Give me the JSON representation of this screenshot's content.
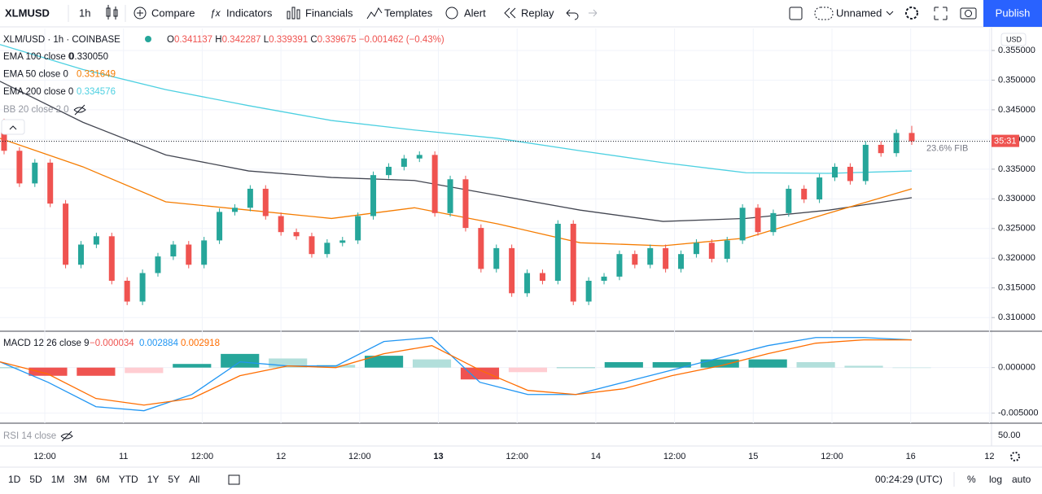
{
  "toolbar": {
    "symbol": "XLMUSD",
    "interval": "1h",
    "buttons": [
      "Compare",
      "Indicators",
      "Financials",
      "Templates",
      "Alert",
      "Replay"
    ],
    "layout_name": "Unnamed",
    "publish": "Publish"
  },
  "legend": {
    "instrument": "XLM/USD · 1h · COINBASE",
    "ohlc": [
      [
        "O",
        "0.341137"
      ],
      [
        "H",
        "0.342287"
      ],
      [
        "L",
        "0.339391"
      ],
      [
        "C",
        "0.339675"
      ]
    ],
    "change": "−0.001462 (−0.43%)",
    "indicator_values": [
      "0.330050",
      "0.331649",
      "0.334576"
    ],
    "bb": "BB 20 close 2 0",
    "rsi": "RSI 14 close",
    "rsi_tick": "50.00",
    "currency": "USD"
  },
  "chart_data": [
    {
      "type": "candlestick",
      "up_color": "#26a69a",
      "down_color": "#ef5350",
      "open": [
        0.3429,
        0.3381,
        0.3326,
        0.3361,
        0.3292,
        0.3189,
        0.3223,
        0.3237,
        0.3162,
        0.3127,
        0.3175,
        0.3203,
        0.3223,
        0.3189,
        0.323,
        0.3278,
        0.3285,
        0.3317,
        0.3271,
        0.3244,
        0.3237,
        0.3207,
        0.3226,
        0.323,
        0.3271,
        0.334,
        0.3354,
        0.3368,
        0.3374,
        0.3276,
        0.3333,
        0.3251,
        0.3182,
        0.3217,
        0.3141,
        0.3175,
        0.3162,
        0.3258,
        0.3127,
        0.3162,
        0.3169,
        0.3207,
        0.3189,
        0.3217,
        0.3182,
        0.3207,
        0.3226,
        0.3199,
        0.323,
        0.3285,
        0.3244,
        0.3276,
        0.3317,
        0.3299,
        0.3336,
        0.3354,
        0.333,
        0.3391,
        0.3377,
        0.3411
      ],
      "high": [
        0.3435,
        0.3387,
        0.3367,
        0.3367,
        0.3298,
        0.3229,
        0.3243,
        0.3243,
        0.3168,
        0.3181,
        0.3209,
        0.3229,
        0.3229,
        0.3236,
        0.3284,
        0.3291,
        0.3323,
        0.3323,
        0.3277,
        0.325,
        0.3243,
        0.3232,
        0.3236,
        0.3277,
        0.3346,
        0.336,
        0.3374,
        0.338,
        0.338,
        0.3339,
        0.3339,
        0.3257,
        0.3223,
        0.3223,
        0.3181,
        0.3181,
        0.3264,
        0.3264,
        0.3168,
        0.3175,
        0.3213,
        0.3213,
        0.3223,
        0.3223,
        0.3213,
        0.3232,
        0.3232,
        0.3236,
        0.3291,
        0.3291,
        0.3282,
        0.3323,
        0.3323,
        0.3342,
        0.336,
        0.336,
        0.3397,
        0.3397,
        0.3417,
        0.3423
      ],
      "low": [
        0.3375,
        0.332,
        0.332,
        0.3286,
        0.3183,
        0.3183,
        0.3217,
        0.3156,
        0.3121,
        0.3121,
        0.3169,
        0.3197,
        0.3183,
        0.3183,
        0.3224,
        0.3272,
        0.3279,
        0.3265,
        0.3238,
        0.3231,
        0.3201,
        0.3201,
        0.322,
        0.3224,
        0.3265,
        0.3334,
        0.3348,
        0.3362,
        0.327,
        0.327,
        0.3245,
        0.3176,
        0.3176,
        0.3135,
        0.3135,
        0.3156,
        0.3156,
        0.3121,
        0.3121,
        0.3156,
        0.3163,
        0.3183,
        0.3183,
        0.3176,
        0.3176,
        0.3201,
        0.3193,
        0.3193,
        0.3224,
        0.3238,
        0.3238,
        0.327,
        0.3293,
        0.3293,
        0.333,
        0.3324,
        0.3324,
        0.3371,
        0.3371,
        0.3391
      ],
      "close": [
        0.3381,
        0.3326,
        0.3361,
        0.3292,
        0.3189,
        0.3223,
        0.3237,
        0.3162,
        0.3127,
        0.3175,
        0.3203,
        0.3223,
        0.3189,
        0.323,
        0.3278,
        0.3285,
        0.3317,
        0.3271,
        0.3244,
        0.3237,
        0.3207,
        0.3226,
        0.323,
        0.3271,
        0.334,
        0.3354,
        0.3368,
        0.3374,
        0.3276,
        0.3333,
        0.3251,
        0.3182,
        0.3217,
        0.3141,
        0.3175,
        0.3162,
        0.3258,
        0.3127,
        0.3162,
        0.3169,
        0.3207,
        0.3189,
        0.3217,
        0.3182,
        0.3207,
        0.3226,
        0.3199,
        0.323,
        0.3285,
        0.3244,
        0.3276,
        0.3317,
        0.3299,
        0.3336,
        0.3354,
        0.333,
        0.3391,
        0.3377,
        0.3411,
        0.3397
      ],
      "series": [
        {
          "name": "EMA 100 close 0",
          "color": "#434651",
          "values": [
            0.3498,
            0.3429,
            0.3374,
            0.3347,
            0.3336,
            0.3331,
            0.3306,
            0.3281,
            0.3262,
            0.3267,
            0.3281,
            0.3302
          ]
        },
        {
          "name": "EMA 50 close 0",
          "color": "#f57c00",
          "values": [
            0.3402,
            0.3354,
            0.3295,
            0.3281,
            0.3267,
            0.3285,
            0.3258,
            0.3226,
            0.3221,
            0.3234,
            0.3276,
            0.3317
          ]
        },
        {
          "name": "EMA 200 close 0",
          "color": "#4dd0e1",
          "values": [
            0.356,
            0.3518,
            0.3484,
            0.3457,
            0.3432,
            0.3416,
            0.3402,
            0.3381,
            0.3361,
            0.3344,
            0.3343,
            0.3347
          ]
        }
      ],
      "ylim": [
        0.3077,
        0.3587
      ],
      "yticks": [
        {
          "value": 0.31,
          "label": "0.310000"
        },
        {
          "value": 0.315,
          "label": "0.315000"
        },
        {
          "value": 0.32,
          "label": "0.320000"
        },
        {
          "value": 0.325,
          "label": "0.325000"
        },
        {
          "value": 0.33,
          "label": "0.330000"
        },
        {
          "value": 0.335,
          "label": "0.335000"
        },
        {
          "value": 0.34,
          "label": "0.340000"
        },
        {
          "value": 0.345,
          "label": "0.345000"
        },
        {
          "value": 0.35,
          "label": "0.350000"
        },
        {
          "value": 0.355,
          "label": "0.355000"
        }
      ],
      "fib_label": "23.6% FIB",
      "countdown": "35:31",
      "x_labels": [
        "12:00",
        "11",
        "12:00",
        "12",
        "12:00",
        "13",
        "12:00",
        "14",
        "12:00",
        "15",
        "12:00",
        "16",
        "12"
      ]
    },
    {
      "type": "macd",
      "title": "MACD 12 26 close 9",
      "value_labels": [
        "−0.000034",
        "0.002884",
        "0.002918"
      ],
      "histogram": [
        0.0,
        -0.0009,
        -0.0009,
        -0.0006,
        0.0004,
        0.0015,
        0.001,
        0.0003,
        0.0013,
        0.0009,
        -0.0013,
        -0.0005,
        0.0,
        0.0006,
        0.0006,
        0.0009,
        0.0009,
        0.0006,
        0.0002,
        0.0
      ],
      "series": [
        {
          "color": "#2196f3",
          "values": [
            0.00063,
            -0.00161,
            -0.00429,
            -0.00473,
            -0.00295,
            0.00063,
            0.00018,
            0.00018,
            0.00286,
            0.0033,
            -0.00161,
            -0.00295,
            -0.00295,
            -0.00161,
            -0.00027,
            0.00107,
            0.00241,
            0.0033,
            0.0033,
            0.00304
          ]
        },
        {
          "color": "#ff6d00",
          "values": [
            0.00063,
            -0.00071,
            -0.00339,
            -0.00411,
            -0.00339,
            -0.00089,
            0.00018,
            0,
            0.00152,
            0.00241,
            -0.00027,
            -0.0025,
            -0.00295,
            -0.00232,
            -0.00089,
            0.00018,
            0.00152,
            0.00268,
            0.00304,
            0.00304
          ]
        }
      ],
      "ylim": [
        -0.0061,
        0.0039
      ],
      "yticks": [
        {
          "value": 0,
          "label": "0.000000"
        },
        {
          "value": -0.005,
          "label": "-0.005000"
        }
      ]
    }
  ],
  "bottom_bar": {
    "ranges": [
      "1D",
      "5D",
      "1M",
      "3M",
      "6M",
      "YTD",
      "1Y",
      "5Y",
      "All"
    ],
    "clock": "00:24:29 (UTC)",
    "options": [
      "%",
      "log",
      "auto"
    ]
  }
}
